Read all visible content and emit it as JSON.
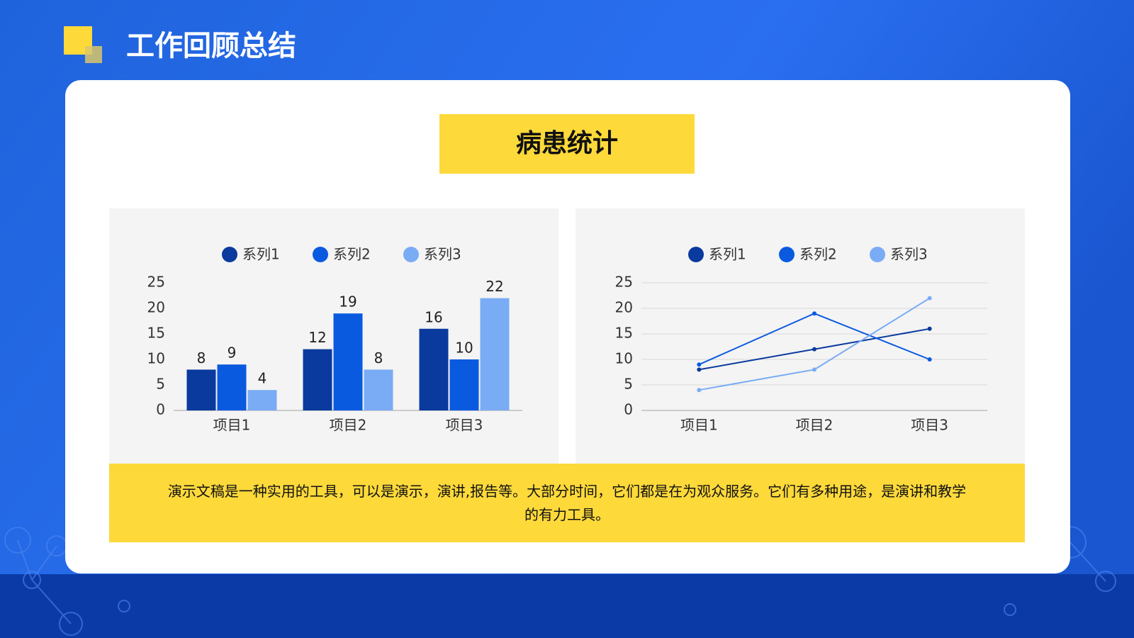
{
  "title": "工作回顾总结",
  "panel_title": "病患统计",
  "chart_data": [
    {
      "type": "bar",
      "categories": [
        "项目1",
        "项目2",
        "项目3"
      ],
      "series": [
        {
          "name": "系列1",
          "color": "#0a3a9e",
          "values": [
            8,
            12,
            16
          ]
        },
        {
          "name": "系列2",
          "color": "#0a5ae0",
          "values": [
            9,
            19,
            10
          ]
        },
        {
          "name": "系列3",
          "color": "#7aacf5",
          "values": [
            4,
            8,
            22
          ]
        }
      ],
      "ylim": [
        0,
        25
      ],
      "yticks": [
        0,
        5,
        10,
        15,
        20,
        25
      ],
      "grid": false,
      "data_labels": true,
      "legend": "top"
    },
    {
      "type": "line",
      "categories": [
        "项目1",
        "项目2",
        "项目3"
      ],
      "series": [
        {
          "name": "系列1",
          "color": "#0a3a9e",
          "values": [
            8,
            12,
            16
          ]
        },
        {
          "name": "系列2",
          "color": "#0a5ae0",
          "values": [
            9,
            19,
            10
          ]
        },
        {
          "name": "系列3",
          "color": "#7aacf5",
          "values": [
            4,
            8,
            22
          ]
        }
      ],
      "ylim": [
        0,
        25
      ],
      "yticks": [
        0,
        5,
        10,
        15,
        20,
        25
      ],
      "grid": true,
      "data_labels": false,
      "legend": "top"
    }
  ],
  "caption": "演示文稿是一种实用的工具，可以是演示，演讲,报告等。大部分时间，它们都是在为观众服务。它们有多种用途，是演讲和教学的有力工具。"
}
